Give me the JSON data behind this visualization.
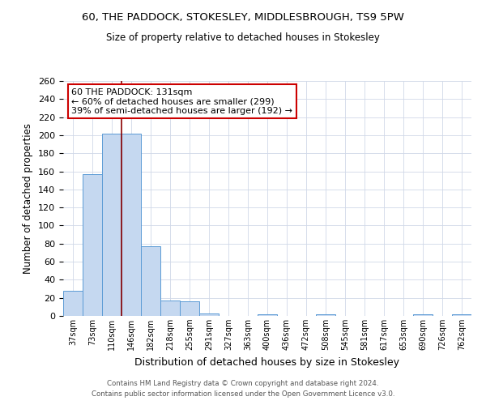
{
  "title1": "60, THE PADDOCK, STOKESLEY, MIDDLESBROUGH, TS9 5PW",
  "title2": "Size of property relative to detached houses in Stokesley",
  "xlabel": "Distribution of detached houses by size in Stokesley",
  "ylabel": "Number of detached properties",
  "bin_labels": [
    "37sqm",
    "73sqm",
    "110sqm",
    "146sqm",
    "182sqm",
    "218sqm",
    "255sqm",
    "291sqm",
    "327sqm",
    "363sqm",
    "400sqm",
    "436sqm",
    "472sqm",
    "508sqm",
    "545sqm",
    "581sqm",
    "617sqm",
    "653sqm",
    "690sqm",
    "726sqm",
    "762sqm"
  ],
  "bar_heights": [
    28,
    157,
    202,
    202,
    77,
    17,
    16,
    3,
    0,
    0,
    2,
    0,
    0,
    2,
    0,
    0,
    0,
    0,
    2,
    0,
    2
  ],
  "bar_color": "#c5d8f0",
  "bar_edge_color": "#5b9bd5",
  "vline_x": 2.5,
  "vline_color": "#8b0000",
  "annotation_text": "60 THE PADDOCK: 131sqm\n← 60% of detached houses are smaller (299)\n39% of semi-detached houses are larger (192) →",
  "annotation_box_color": "#ffffff",
  "annotation_box_edge": "#cc0000",
  "ylim": [
    0,
    260
  ],
  "yticks": [
    0,
    20,
    40,
    60,
    80,
    100,
    120,
    140,
    160,
    180,
    200,
    220,
    240,
    260
  ],
  "footer1": "Contains HM Land Registry data © Crown copyright and database right 2024.",
  "footer2": "Contains public sector information licensed under the Open Government Licence v3.0.",
  "bg_color": "#ffffff",
  "grid_color": "#d0d8e8"
}
